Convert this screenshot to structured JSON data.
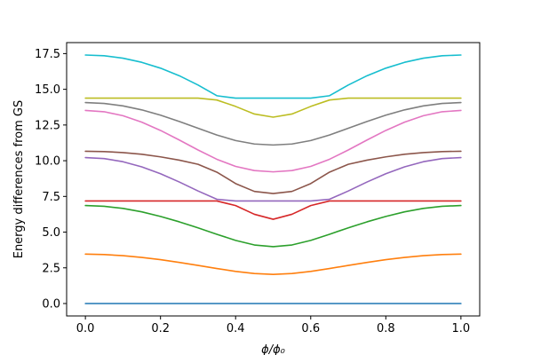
{
  "chart_data": {
    "type": "line",
    "title": "",
    "xlabel": "ϕ/ϕ₀",
    "ylabel": "Energy differences from GS",
    "xlim": [
      -0.05,
      1.05
    ],
    "ylim": [
      -0.87,
      18.27
    ],
    "x": [
      0.0,
      0.05,
      0.1,
      0.15,
      0.2,
      0.25,
      0.3,
      0.35,
      0.4,
      0.45,
      0.5,
      0.55,
      0.6,
      0.65,
      0.7,
      0.75,
      0.8,
      0.85,
      0.9,
      0.95,
      1.0
    ],
    "xticks": [
      0.0,
      0.2,
      0.4,
      0.6,
      0.8,
      1.0
    ],
    "xtick_labels": [
      "0.0",
      "0.2",
      "0.4",
      "0.6",
      "0.8",
      "1.0"
    ],
    "yticks": [
      0.0,
      2.5,
      5.0,
      7.5,
      10.0,
      12.5,
      15.0,
      17.5
    ],
    "ytick_labels": [
      "0.0",
      "2.5",
      "5.0",
      "7.5",
      "10.0",
      "12.5",
      "15.0",
      "17.5"
    ],
    "grid": false,
    "series": [
      {
        "color": "#1f77b4",
        "values": [
          0.0,
          0.0,
          0.0,
          0.0,
          0.0,
          0.0,
          0.0,
          0.0,
          0.0,
          0.0,
          0.0,
          0.0,
          0.0,
          0.0,
          0.0,
          0.0,
          0.0,
          0.0,
          0.0,
          0.0,
          0.0
        ]
      },
      {
        "color": "#ff7f0e",
        "values": [
          3.46,
          3.43,
          3.35,
          3.23,
          3.07,
          2.88,
          2.67,
          2.45,
          2.25,
          2.1,
          2.04,
          2.1,
          2.25,
          2.45,
          2.67,
          2.88,
          3.07,
          3.23,
          3.35,
          3.43,
          3.46
        ]
      },
      {
        "color": "#2ca02c",
        "values": [
          6.86,
          6.81,
          6.66,
          6.42,
          6.1,
          5.72,
          5.3,
          4.85,
          4.42,
          4.1,
          3.98,
          4.1,
          4.42,
          4.85,
          5.3,
          5.72,
          6.1,
          6.42,
          6.66,
          6.81,
          6.86
        ]
      },
      {
        "color": "#d62728",
        "values": [
          7.18,
          7.18,
          7.18,
          7.18,
          7.18,
          7.18,
          7.18,
          7.18,
          6.86,
          6.25,
          5.9,
          6.25,
          6.86,
          7.18,
          7.18,
          7.18,
          7.18,
          7.18,
          7.18,
          7.18,
          7.18
        ]
      },
      {
        "color": "#9467bd",
        "values": [
          10.22,
          10.15,
          9.93,
          9.57,
          9.09,
          8.51,
          7.88,
          7.3,
          7.18,
          7.18,
          7.18,
          7.18,
          7.18,
          7.3,
          7.88,
          8.51,
          9.09,
          9.57,
          9.93,
          10.15,
          10.22
        ]
      },
      {
        "color": "#8c564b",
        "values": [
          10.66,
          10.64,
          10.57,
          10.45,
          10.27,
          10.04,
          9.75,
          9.2,
          8.4,
          7.85,
          7.7,
          7.85,
          8.4,
          9.2,
          9.75,
          10.04,
          10.27,
          10.45,
          10.57,
          10.64,
          10.66
        ]
      },
      {
        "color": "#e377c2",
        "values": [
          13.52,
          13.43,
          13.15,
          12.7,
          12.12,
          11.45,
          10.75,
          10.1,
          9.6,
          9.31,
          9.22,
          9.31,
          9.6,
          10.1,
          10.75,
          11.45,
          12.12,
          12.7,
          13.15,
          13.43,
          13.52
        ]
      },
      {
        "color": "#7f7f7f",
        "values": [
          14.07,
          14.01,
          13.84,
          13.56,
          13.19,
          12.75,
          12.27,
          11.8,
          11.41,
          11.17,
          11.1,
          11.17,
          11.41,
          11.8,
          12.27,
          12.75,
          13.19,
          13.56,
          13.84,
          14.01,
          14.07
        ]
      },
      {
        "color": "#bcbd22",
        "values": [
          14.38,
          14.38,
          14.38,
          14.38,
          14.38,
          14.38,
          14.38,
          14.25,
          13.8,
          13.27,
          13.05,
          13.27,
          13.8,
          14.25,
          14.38,
          14.38,
          14.38,
          14.38,
          14.38,
          14.38,
          14.38
        ]
      },
      {
        "color": "#17becf",
        "values": [
          17.4,
          17.35,
          17.18,
          16.89,
          16.48,
          15.95,
          15.3,
          14.55,
          14.38,
          14.38,
          14.38,
          14.38,
          14.38,
          14.55,
          15.3,
          15.95,
          16.48,
          16.89,
          17.18,
          17.35,
          17.4
        ]
      }
    ]
  }
}
